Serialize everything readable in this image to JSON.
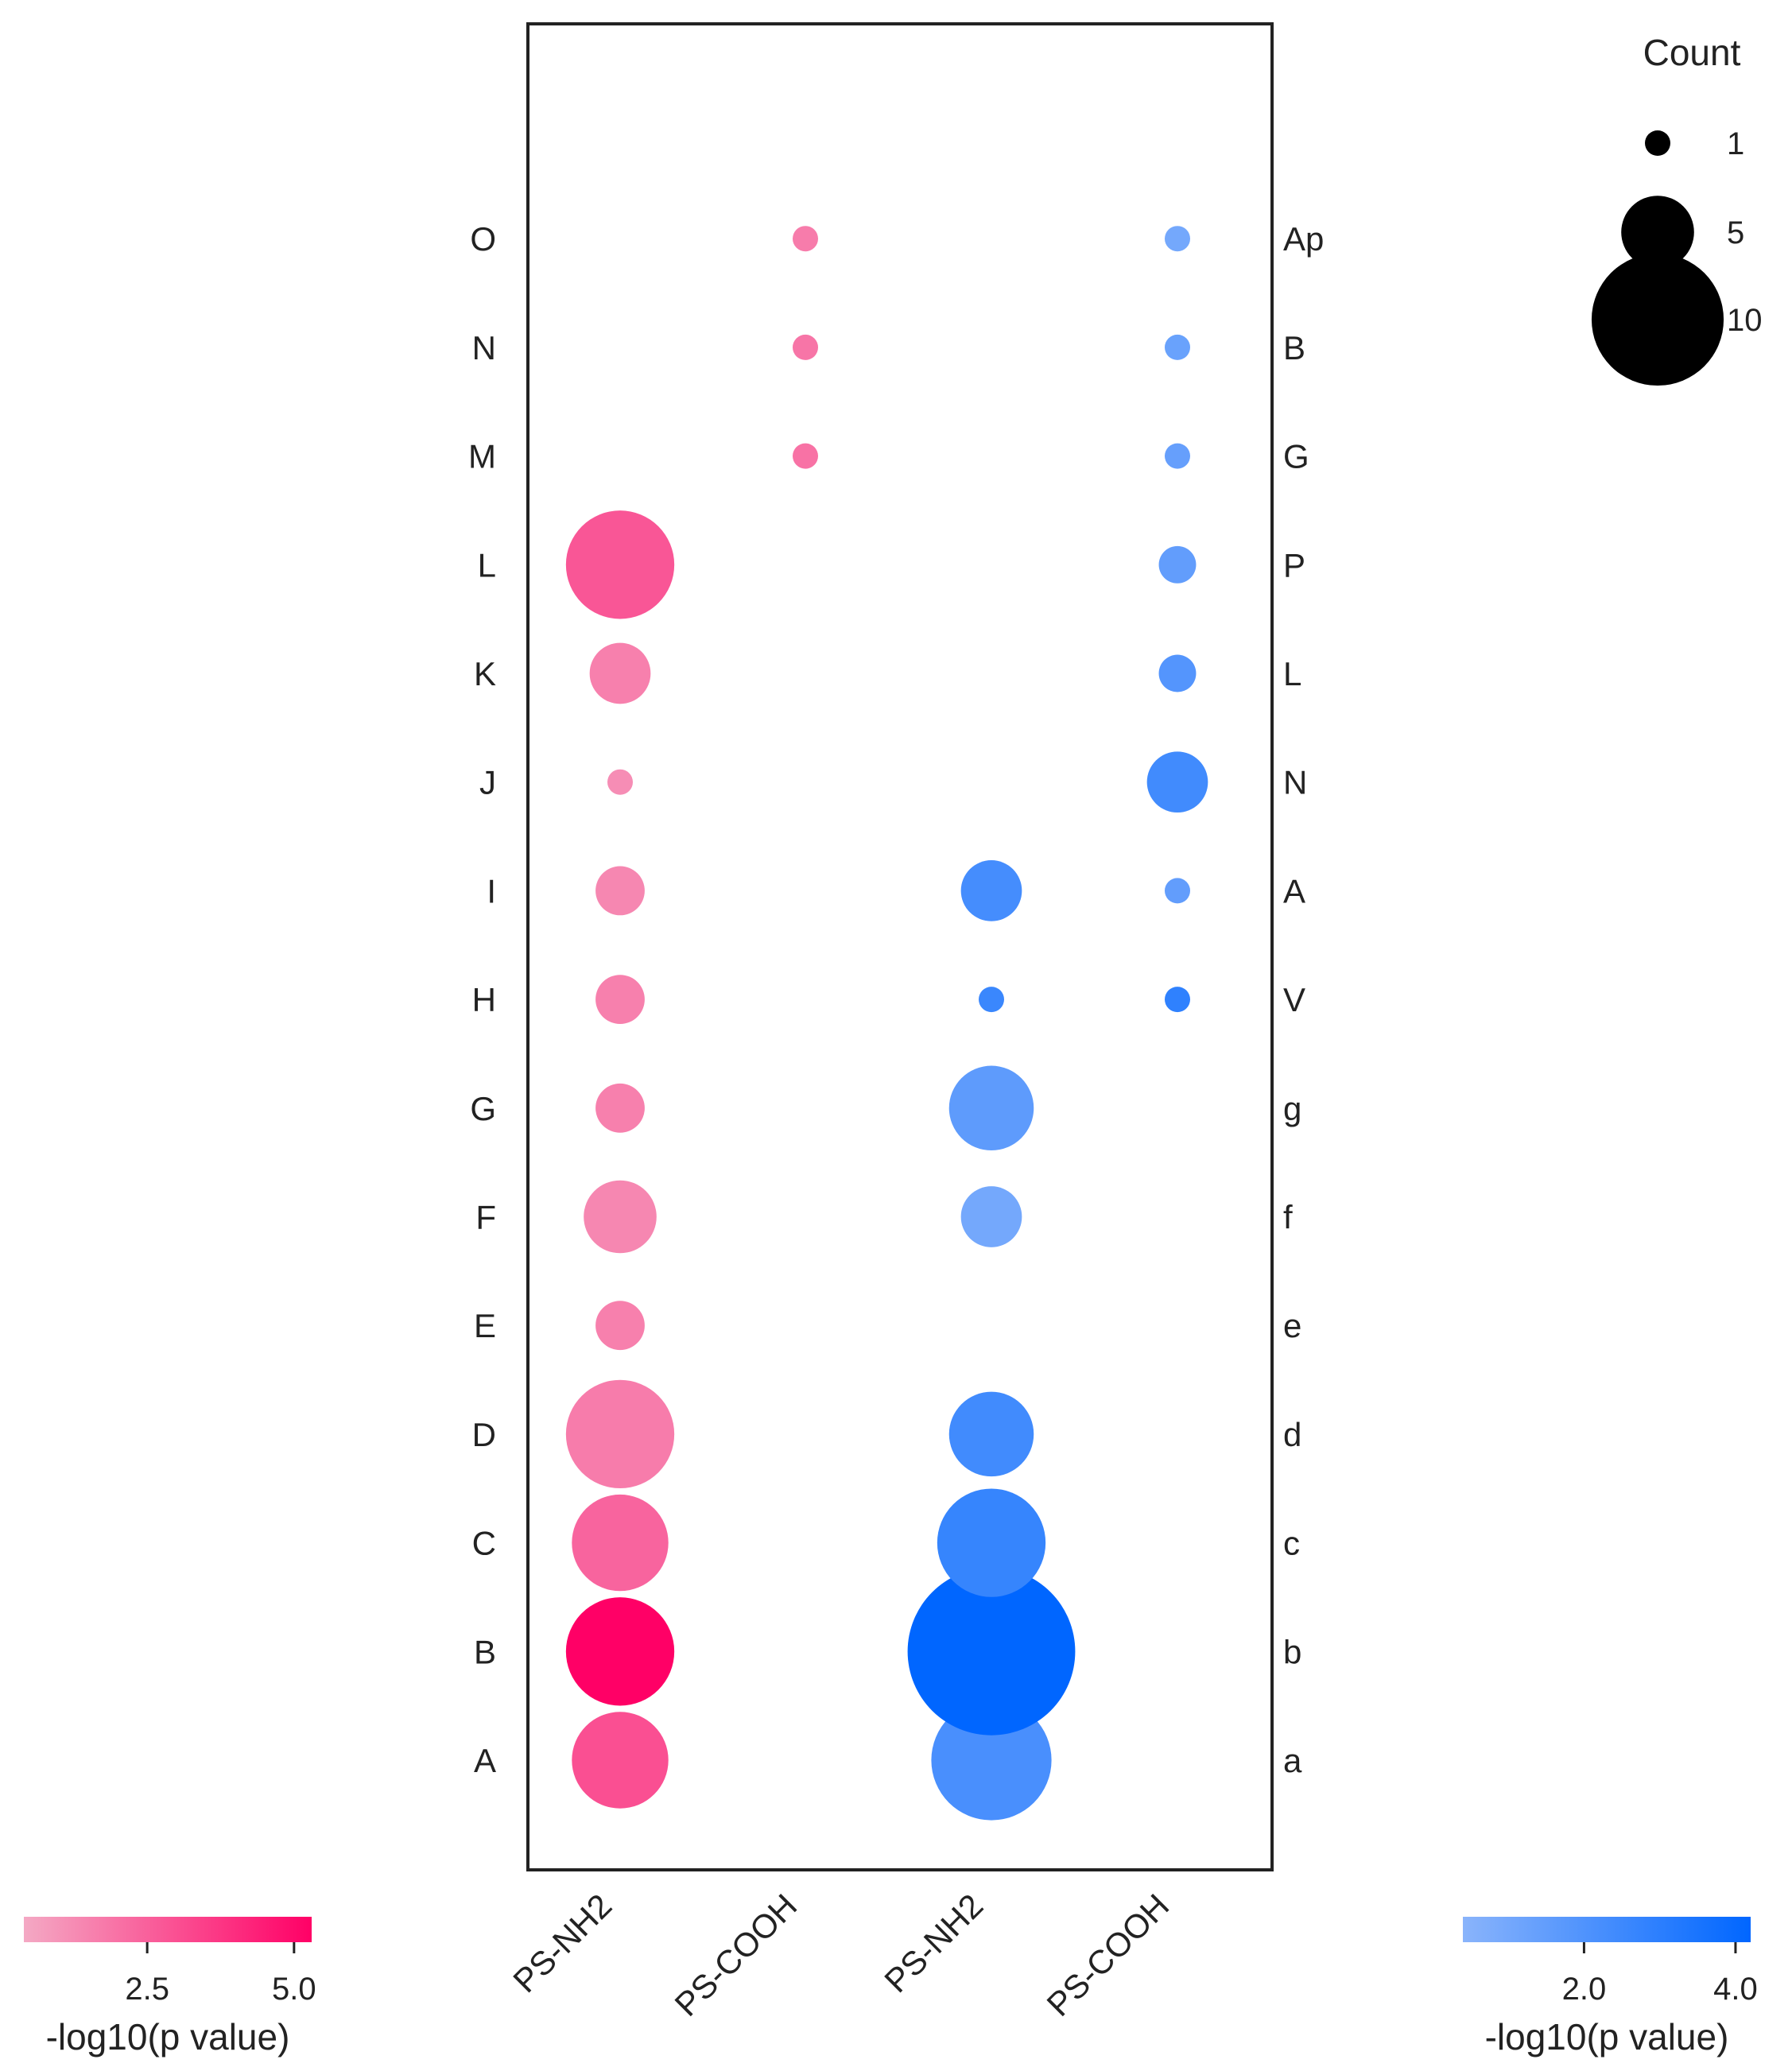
{
  "chart_data": {
    "type": "scatter",
    "x_categories": [
      "PS-NH2",
      "PS-COOH",
      "PS-NH2",
      "PS-COOH"
    ],
    "left_y_labels": [
      "A",
      "B",
      "C",
      "D",
      "E",
      "F",
      "G",
      "H",
      "I",
      "J",
      "K",
      "L",
      "M",
      "N",
      "O"
    ],
    "right_y_labels": [
      "a",
      "b",
      "c",
      "d",
      "e",
      "f",
      "g",
      "V",
      "A",
      "N",
      "L",
      "P",
      "G",
      "B",
      "Ap"
    ],
    "groups": [
      {
        "color_scale": "pink",
        "points": [
          {
            "x": 0,
            "row": 0,
            "count": 7,
            "neglog10p": 3.0
          },
          {
            "x": 0,
            "row": 1,
            "count": 8,
            "neglog10p": 5.3
          },
          {
            "x": 0,
            "row": 2,
            "count": 7,
            "neglog10p": 2.4
          },
          {
            "x": 0,
            "row": 3,
            "count": 8,
            "neglog10p": 1.7
          },
          {
            "x": 0,
            "row": 4,
            "count": 3,
            "neglog10p": 1.6
          },
          {
            "x": 0,
            "row": 5,
            "count": 5,
            "neglog10p": 1.4
          },
          {
            "x": 0,
            "row": 6,
            "count": 3,
            "neglog10p": 1.6
          },
          {
            "x": 0,
            "row": 7,
            "count": 3,
            "neglog10p": 1.6
          },
          {
            "x": 0,
            "row": 8,
            "count": 3,
            "neglog10p": 1.4
          },
          {
            "x": 0,
            "row": 9,
            "count": 1,
            "neglog10p": 1.2
          },
          {
            "x": 0,
            "row": 10,
            "count": 4,
            "neglog10p": 1.6
          },
          {
            "x": 0,
            "row": 11,
            "count": 8,
            "neglog10p": 2.8
          },
          {
            "x": 1,
            "row": 12,
            "count": 1,
            "neglog10p": 2.0
          },
          {
            "x": 1,
            "row": 13,
            "count": 1,
            "neglog10p": 1.9
          },
          {
            "x": 1,
            "row": 14,
            "count": 1,
            "neglog10p": 1.7
          }
        ]
      },
      {
        "color_scale": "blue",
        "points": [
          {
            "x": 2,
            "row": 0,
            "count": 9,
            "neglog10p": 2.2
          },
          {
            "x": 2,
            "row": 1,
            "count": 13,
            "neglog10p": 4.2
          },
          {
            "x": 2,
            "row": 2,
            "count": 8,
            "neglog10p": 2.7
          },
          {
            "x": 2,
            "row": 3,
            "count": 6,
            "neglog10p": 2.4
          },
          {
            "x": 2,
            "row": 5,
            "count": 4,
            "neglog10p": 1.0
          },
          {
            "x": 2,
            "row": 6,
            "count": 6,
            "neglog10p": 1.6
          },
          {
            "x": 2,
            "row": 7,
            "count": 1,
            "neglog10p": 2.6
          },
          {
            "x": 2,
            "row": 8,
            "count": 4,
            "neglog10p": 2.3
          },
          {
            "x": 3,
            "row": 7,
            "count": 1,
            "neglog10p": 2.9
          },
          {
            "x": 3,
            "row": 8,
            "count": 1,
            "neglog10p": 1.5
          },
          {
            "x": 3,
            "row": 9,
            "count": 4,
            "neglog10p": 2.4
          },
          {
            "x": 3,
            "row": 10,
            "count": 2,
            "neglog10p": 1.9
          },
          {
            "x": 3,
            "row": 11,
            "count": 2,
            "neglog10p": 1.5
          },
          {
            "x": 3,
            "row": 12,
            "count": 1,
            "neglog10p": 1.4
          },
          {
            "x": 3,
            "row": 13,
            "count": 1,
            "neglog10p": 1.3
          },
          {
            "x": 3,
            "row": 14,
            "count": 1,
            "neglog10p": 1.0
          }
        ]
      }
    ],
    "size_legend": {
      "title": "Count",
      "entries": [
        {
          "label": "1",
          "count": 1
        },
        {
          "label": "5",
          "count": 5
        },
        {
          "label": "10",
          "count": 10
        }
      ]
    },
    "colorbars": [
      {
        "name": "pink",
        "label": "-log10(p value)",
        "min": 0.4,
        "max": 5.3,
        "ticks": [
          {
            "value": 2.5,
            "label": "2.5"
          },
          {
            "value": 5.0,
            "label": "5.0"
          }
        ],
        "colors": [
          "#f4a9c4",
          "#ff0066"
        ]
      },
      {
        "name": "blue",
        "label": "-log10(p value)",
        "min": 0.4,
        "max": 4.2,
        "ticks": [
          {
            "value": 2.0,
            "label": "2.0"
          },
          {
            "value": 4.0,
            "label": "4.0"
          }
        ],
        "colors": [
          "#8ab4fb",
          "#0066ff"
        ]
      }
    ]
  }
}
